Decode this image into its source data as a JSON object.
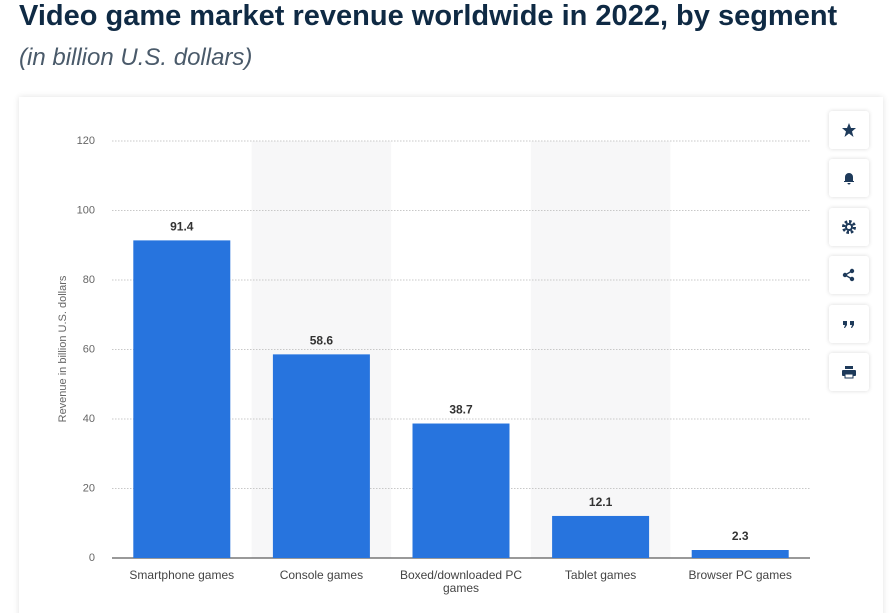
{
  "chart_data": {
    "type": "bar",
    "title": "Video game market revenue worldwide in 2022, by segment",
    "subtitle": "(in billion U.S. dollars)",
    "y_axis_label": "Revenue in billion U.S. dollars",
    "categories": [
      "Smartphone games",
      "Console games",
      "Boxed/downloaded PC games",
      "Tablet games",
      "Browser PC games"
    ],
    "values": [
      91.4,
      58.6,
      38.7,
      12.1,
      2.3
    ],
    "color": "#2774de",
    "ylim": [
      0,
      120
    ],
    "yticks": [
      0,
      20,
      40,
      60,
      80,
      100,
      120
    ],
    "grid": true
  }
}
